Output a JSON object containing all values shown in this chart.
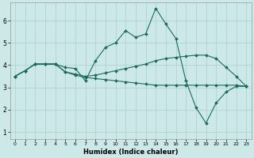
{
  "xlabel": "Humidex (Indice chaleur)",
  "bg_color": "#cde8e8",
  "line_color": "#1a6b5a",
  "grid_color": "#aacfcf",
  "xlim": [
    -0.5,
    23.5
  ],
  "ylim": [
    0.7,
    6.8
  ],
  "xticks": [
    0,
    1,
    2,
    3,
    4,
    5,
    6,
    7,
    8,
    9,
    10,
    11,
    12,
    13,
    14,
    15,
    16,
    17,
    18,
    19,
    20,
    21,
    22,
    23
  ],
  "yticks": [
    1,
    2,
    3,
    4,
    5,
    6
  ],
  "curves": [
    {
      "x": [
        0,
        1,
        2,
        3,
        4,
        5,
        6,
        7,
        8,
        9,
        10,
        11,
        12,
        13,
        14,
        15,
        16,
        17,
        18,
        19,
        20,
        21,
        22,
        23
      ],
      "y": [
        3.5,
        3.75,
        4.05,
        4.05,
        4.05,
        3.9,
        3.85,
        3.3,
        4.2,
        4.8,
        5.0,
        5.55,
        5.25,
        5.4,
        6.55,
        5.85,
        5.2,
        3.3,
        2.1,
        1.4,
        2.3,
        2.8,
        3.05,
        3.05
      ]
    },
    {
      "x": [
        0,
        1,
        2,
        3,
        4,
        5,
        6,
        7,
        8,
        9,
        10,
        11,
        12,
        13,
        14,
        15,
        16,
        17,
        18,
        19,
        20,
        21,
        22,
        23
      ],
      "y": [
        3.5,
        3.75,
        4.05,
        4.05,
        4.05,
        3.7,
        3.6,
        3.5,
        3.55,
        3.65,
        3.75,
        3.85,
        3.95,
        4.05,
        4.2,
        4.3,
        4.35,
        4.4,
        4.45,
        4.45,
        4.3,
        3.9,
        3.5,
        3.05
      ]
    },
    {
      "x": [
        0,
        1,
        2,
        3,
        4,
        5,
        6,
        7,
        8,
        9,
        10,
        11,
        12,
        13,
        14,
        15,
        16,
        17,
        18,
        19,
        20,
        21,
        22,
        23
      ],
      "y": [
        3.5,
        3.75,
        4.05,
        4.05,
        4.05,
        3.7,
        3.55,
        3.45,
        3.4,
        3.35,
        3.3,
        3.25,
        3.2,
        3.15,
        3.1,
        3.1,
        3.1,
        3.1,
        3.1,
        3.1,
        3.1,
        3.1,
        3.1,
        3.05
      ]
    }
  ]
}
